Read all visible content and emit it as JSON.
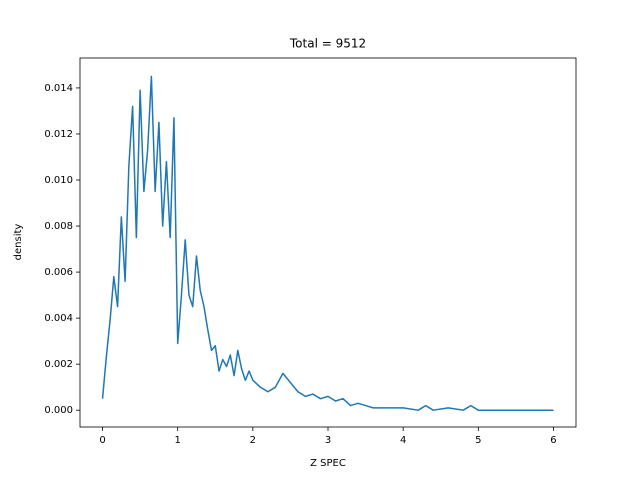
{
  "chart_data": {
    "type": "line",
    "title": "Total = 9512",
    "x_label": "Z SPEC",
    "y_label": "density",
    "x": [
      0,
      0.05,
      0.1,
      0.15,
      0.2,
      0.25,
      0.3,
      0.35,
      0.4,
      0.45,
      0.5,
      0.55,
      0.6,
      0.65,
      0.7,
      0.75,
      0.8,
      0.85,
      0.9,
      0.95,
      1.0,
      1.05,
      1.1,
      1.15,
      1.2,
      1.25,
      1.3,
      1.35,
      1.4,
      1.45,
      1.5,
      1.55,
      1.6,
      1.65,
      1.7,
      1.75,
      1.8,
      1.85,
      1.9,
      1.95,
      2.0,
      2.1,
      2.2,
      2.3,
      2.4,
      2.5,
      2.6,
      2.7,
      2.8,
      2.9,
      3.0,
      3.1,
      3.2,
      3.3,
      3.4,
      3.5,
      3.6,
      3.7,
      3.8,
      4.0,
      4.2,
      4.3,
      4.4,
      4.6,
      4.8,
      4.9,
      5.0,
      5.5,
      6.0
    ],
    "series": [
      {
        "name": "density",
        "color": "#1f77b4",
        "values": [
          0.0005,
          0.0023,
          0.0039,
          0.0058,
          0.0045,
          0.0084,
          0.0056,
          0.0106,
          0.0132,
          0.0075,
          0.0139,
          0.0095,
          0.0113,
          0.0145,
          0.0095,
          0.0125,
          0.008,
          0.0108,
          0.0075,
          0.0127,
          0.0029,
          0.005,
          0.0074,
          0.005,
          0.0045,
          0.0067,
          0.0052,
          0.0045,
          0.0035,
          0.0026,
          0.0028,
          0.0017,
          0.0022,
          0.0019,
          0.0024,
          0.0015,
          0.0026,
          0.0018,
          0.0013,
          0.0017,
          0.0013,
          0.001,
          0.0008,
          0.001,
          0.0016,
          0.0012,
          0.0008,
          0.0006,
          0.0007,
          0.0005,
          0.0006,
          0.0004,
          0.0005,
          0.0002,
          0.0003,
          0.0002,
          0.0001,
          0.0001,
          0.0001,
          0.0001,
          0,
          0.0002,
          0,
          0.0001,
          0,
          0.0002,
          0,
          0,
          0
        ]
      }
    ],
    "xlim": [
      -0.3,
      6.3
    ],
    "ylim": [
      -0.00073,
      0.0153
    ],
    "xticks": [
      0,
      1,
      2,
      3,
      4,
      5,
      6
    ],
    "yticks": [
      {
        "value": 0,
        "label": "0.000"
      },
      {
        "value": 0.002,
        "label": "0.002"
      },
      {
        "value": 0.004,
        "label": "0.004"
      },
      {
        "value": 0.006,
        "label": "0.006"
      },
      {
        "value": 0.008,
        "label": "0.008"
      },
      {
        "value": 0.01,
        "label": "0.010"
      },
      {
        "value": 0.012,
        "label": "0.012"
      },
      {
        "value": 0.014,
        "label": "0.014"
      }
    ],
    "grid": false
  }
}
